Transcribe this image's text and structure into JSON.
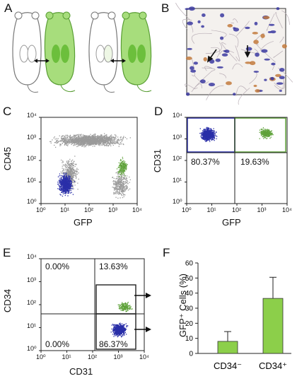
{
  "panels": {
    "A": {
      "letter": "A"
    },
    "B": {
      "letter": "B"
    },
    "C": {
      "letter": "C",
      "xlabel": "GFP",
      "ylabel": "CD45"
    },
    "D": {
      "letter": "D",
      "xlabel": "GFP",
      "ylabel": "CD31",
      "quadrants": {
        "top_left": "80.37%",
        "top_right": "19.63%"
      }
    },
    "E": {
      "letter": "E",
      "xlabel": "CD31",
      "ylabel": "CD34",
      "quadrants": {
        "top_left": "0.00%",
        "top_right": "13.63%",
        "bottom_left": "0.00%",
        "bottom_right": "86.37%"
      }
    },
    "F": {
      "letter": "F"
    }
  },
  "flow_ticks": {
    "x": [
      "10⁰",
      "10¹",
      "10²",
      "10³",
      "10⁴"
    ],
    "y": [
      "10⁰",
      "10¹",
      "10²",
      "10³",
      "10⁴"
    ]
  },
  "colors": {
    "gfp_green": "#8fd16a",
    "blue_dots": "#2a2fa8",
    "grey_dots": "#9a9a9a",
    "bar": "#8ccf4a"
  },
  "chart_data": {
    "type": "bar",
    "categories": [
      "CD34⁻",
      "CD34⁺"
    ],
    "values": [
      8,
      36.5
    ],
    "errors": [
      6.5,
      14
    ],
    "ylabel": "GFP⁺ Cells (%)",
    "ylim": [
      0,
      60
    ],
    "yticks": [
      "0",
      "10",
      "20",
      "30",
      "40",
      "50",
      "60"
    ]
  }
}
